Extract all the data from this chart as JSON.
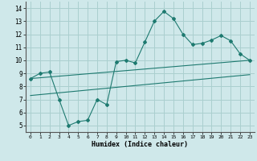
{
  "xlabel": "Humidex (Indice chaleur)",
  "ylabel": "",
  "bg_color": "#cfe8ea",
  "grid_color": "#aacfcf",
  "line_color": "#1e7a70",
  "xlim": [
    -0.5,
    23.5
  ],
  "ylim": [
    4.5,
    14.5
  ],
  "xticks": [
    0,
    1,
    2,
    3,
    4,
    5,
    6,
    7,
    8,
    9,
    10,
    11,
    12,
    13,
    14,
    15,
    16,
    17,
    18,
    19,
    20,
    21,
    22,
    23
  ],
  "yticks": [
    5,
    6,
    7,
    8,
    9,
    10,
    11,
    12,
    13,
    14
  ],
  "curve_x": [
    0,
    1,
    2,
    3,
    4,
    5,
    6,
    7,
    8,
    9,
    10,
    11,
    12,
    13,
    14,
    15,
    16,
    17,
    18,
    19,
    20,
    21,
    22,
    23
  ],
  "curve_y": [
    8.6,
    9.0,
    9.1,
    7.0,
    5.0,
    5.3,
    5.4,
    7.0,
    6.6,
    9.9,
    10.0,
    9.8,
    11.4,
    13.0,
    13.75,
    13.2,
    12.0,
    11.2,
    11.3,
    11.55,
    11.9,
    11.5,
    10.5,
    10.0
  ],
  "line1_x": [
    0,
    23
  ],
  "line1_y": [
    8.6,
    10.0
  ],
  "line2_x": [
    0,
    23
  ],
  "line2_y": [
    7.3,
    8.9
  ]
}
